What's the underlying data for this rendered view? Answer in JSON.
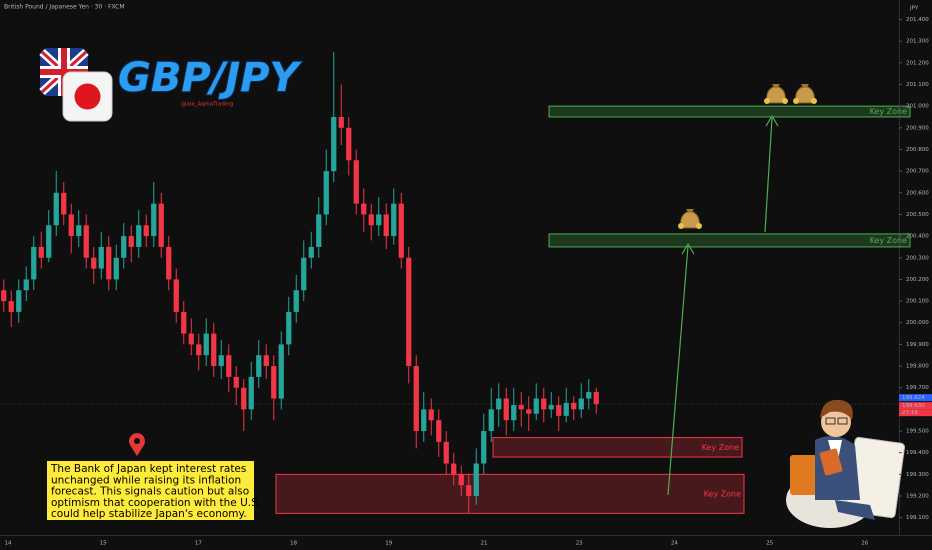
{
  "chart_data": {
    "type": "candlestick",
    "header": "British Pound / Japanese Yen · 30 · FXCM",
    "currency": "JPY",
    "logo": "GBP/JPY",
    "handle": "@ala_AlphaTrading",
    "note": [
      "The Bank of Japan kept interest rates",
      "unchanged while raising its inflation",
      "forecast. This signals caution but also",
      "optimism that cooperation with the U.S.",
      "could help stabilize Japan's economy."
    ],
    "categories": [
      "14",
      "15",
      "17",
      "18",
      "19",
      "21",
      "23",
      "24",
      "25",
      "26"
    ],
    "ylim": [
      199.02,
      201.49
    ],
    "yticks": [
      {
        "value": 201.4,
        "label": "201.400"
      },
      {
        "value": 201.3,
        "label": "201.300"
      },
      {
        "value": 201.2,
        "label": "201.200"
      },
      {
        "value": 201.1,
        "label": "201.100"
      },
      {
        "value": 201.0,
        "label": "201.000"
      },
      {
        "value": 200.9,
        "label": "200.900"
      },
      {
        "value": 200.8,
        "label": "200.800"
      },
      {
        "value": 200.7,
        "label": "200.700"
      },
      {
        "value": 200.6,
        "label": "200.600"
      },
      {
        "value": 200.5,
        "label": "200.500"
      },
      {
        "value": 200.4,
        "label": "200.400"
      },
      {
        "value": 200.3,
        "label": "200.300"
      },
      {
        "value": 200.2,
        "label": "200.200"
      },
      {
        "value": 200.1,
        "label": "200.100"
      },
      {
        "value": 200.0,
        "label": "200.000"
      },
      {
        "value": 199.9,
        "label": "199.900"
      },
      {
        "value": 199.8,
        "label": "199.800"
      },
      {
        "value": 199.7,
        "label": "199.700"
      },
      {
        "value": 199.5,
        "label": "199.500"
      },
      {
        "value": 199.4,
        "label": "199.400"
      },
      {
        "value": 199.3,
        "label": "199.300"
      },
      {
        "value": 199.2,
        "label": "199.200"
      },
      {
        "value": 199.1,
        "label": "199.100"
      }
    ],
    "up_color": "#26a69a",
    "down_color": "#f23645",
    "candles": [
      [
        200.15,
        200.2,
        200.05,
        200.1
      ],
      [
        200.1,
        200.15,
        199.98,
        200.05
      ],
      [
        200.05,
        200.2,
        200.0,
        200.15
      ],
      [
        200.15,
        200.26,
        200.1,
        200.2
      ],
      [
        200.2,
        200.4,
        200.15,
        200.35
      ],
      [
        200.35,
        200.42,
        200.25,
        200.3
      ],
      [
        200.3,
        200.52,
        200.28,
        200.45
      ],
      [
        200.45,
        200.7,
        200.4,
        200.6
      ],
      [
        200.6,
        200.65,
        200.45,
        200.5
      ],
      [
        200.5,
        200.55,
        200.32,
        200.4
      ],
      [
        200.4,
        200.52,
        200.35,
        200.45
      ],
      [
        200.45,
        200.5,
        200.25,
        200.3
      ],
      [
        200.3,
        200.35,
        200.18,
        200.25
      ],
      [
        200.25,
        200.42,
        200.2,
        200.35
      ],
      [
        200.35,
        200.4,
        200.15,
        200.2
      ],
      [
        200.2,
        200.36,
        200.15,
        200.3
      ],
      [
        200.3,
        200.46,
        200.25,
        200.4
      ],
      [
        200.4,
        200.45,
        200.28,
        200.35
      ],
      [
        200.35,
        200.52,
        200.3,
        200.45
      ],
      [
        200.45,
        200.5,
        200.35,
        200.4
      ],
      [
        200.4,
        200.65,
        200.35,
        200.55
      ],
      [
        200.55,
        200.6,
        200.3,
        200.35
      ],
      [
        200.35,
        200.4,
        200.15,
        200.2
      ],
      [
        200.2,
        200.25,
        200.0,
        200.05
      ],
      [
        200.05,
        200.1,
        199.9,
        199.95
      ],
      [
        199.95,
        200.02,
        199.85,
        199.9
      ],
      [
        199.9,
        199.95,
        199.78,
        199.85
      ],
      [
        199.85,
        200.02,
        199.8,
        199.95
      ],
      [
        199.95,
        200.0,
        199.75,
        199.8
      ],
      [
        199.8,
        199.92,
        199.74,
        199.85
      ],
      [
        199.85,
        199.9,
        199.68,
        199.75
      ],
      [
        199.75,
        199.8,
        199.62,
        199.7
      ],
      [
        199.7,
        199.74,
        199.5,
        199.6
      ],
      [
        199.6,
        199.82,
        199.55,
        199.75
      ],
      [
        199.75,
        199.92,
        199.7,
        199.85
      ],
      [
        199.85,
        199.9,
        199.74,
        199.8
      ],
      [
        199.8,
        199.85,
        199.55,
        199.65
      ],
      [
        199.65,
        199.96,
        199.6,
        199.9
      ],
      [
        199.9,
        200.12,
        199.85,
        200.05
      ],
      [
        200.05,
        200.22,
        200.0,
        200.15
      ],
      [
        200.15,
        200.38,
        200.1,
        200.3
      ],
      [
        200.3,
        200.42,
        200.25,
        200.35
      ],
      [
        200.35,
        200.58,
        200.3,
        200.5
      ],
      [
        200.5,
        200.8,
        200.45,
        200.7
      ],
      [
        200.7,
        201.25,
        200.65,
        200.95
      ],
      [
        200.95,
        201.1,
        200.82,
        200.9
      ],
      [
        200.9,
        200.95,
        200.68,
        200.75
      ],
      [
        200.75,
        200.8,
        200.5,
        200.55
      ],
      [
        200.55,
        200.62,
        200.42,
        200.5
      ],
      [
        200.5,
        200.55,
        200.38,
        200.45
      ],
      [
        200.45,
        200.58,
        200.4,
        200.5
      ],
      [
        200.5,
        200.55,
        200.34,
        200.4
      ],
      [
        200.4,
        200.62,
        200.36,
        200.55
      ],
      [
        200.55,
        200.6,
        200.25,
        200.3
      ],
      [
        200.3,
        200.35,
        199.72,
        199.8
      ],
      [
        199.8,
        199.85,
        199.42,
        199.5
      ],
      [
        199.5,
        199.68,
        199.45,
        199.6
      ],
      [
        199.6,
        199.65,
        199.48,
        199.55
      ],
      [
        199.55,
        199.6,
        199.38,
        199.45
      ],
      [
        199.45,
        199.5,
        199.3,
        199.35
      ],
      [
        199.35,
        199.4,
        199.25,
        199.3
      ],
      [
        199.3,
        199.34,
        199.2,
        199.25
      ],
      [
        199.25,
        199.3,
        199.12,
        199.2
      ],
      [
        199.2,
        199.42,
        199.16,
        199.35
      ],
      [
        199.35,
        199.58,
        199.3,
        199.5
      ],
      [
        199.5,
        199.7,
        199.45,
        199.6
      ],
      [
        199.6,
        199.72,
        199.52,
        199.65
      ],
      [
        199.65,
        199.7,
        199.48,
        199.55
      ],
      [
        199.55,
        199.7,
        199.5,
        199.62
      ],
      [
        199.62,
        199.68,
        199.52,
        199.6
      ],
      [
        199.6,
        199.66,
        199.5,
        199.58
      ],
      [
        199.58,
        199.72,
        199.55,
        199.65
      ],
      [
        199.65,
        199.7,
        199.54,
        199.6
      ],
      [
        199.6,
        199.68,
        199.56,
        199.62
      ],
      [
        199.62,
        199.66,
        199.5,
        199.57
      ],
      [
        199.57,
        199.7,
        199.54,
        199.63
      ],
      [
        199.63,
        199.66,
        199.55,
        199.6
      ],
      [
        199.6,
        199.72,
        199.56,
        199.65
      ],
      [
        199.65,
        199.74,
        199.6,
        199.68
      ],
      [
        199.68,
        199.7,
        199.58,
        199.624
      ]
    ],
    "last_price": {
      "value": 199.624,
      "label": "199.624"
    },
    "price_tags": [
      "199.630",
      "27:16"
    ],
    "zones": [
      {
        "label": "Key Zone",
        "top": 201.0,
        "bottom": 200.95,
        "color": "#4caf50"
      },
      {
        "label": "Key Zone",
        "top": 200.41,
        "bottom": 200.35,
        "color": "#4caf50"
      },
      {
        "label": "Key Zone",
        "top": 199.47,
        "bottom": 199.38,
        "color": "#f23645"
      },
      {
        "label": "Key Zone",
        "top": 199.3,
        "bottom": 199.12,
        "color": "#f23645"
      }
    ]
  }
}
